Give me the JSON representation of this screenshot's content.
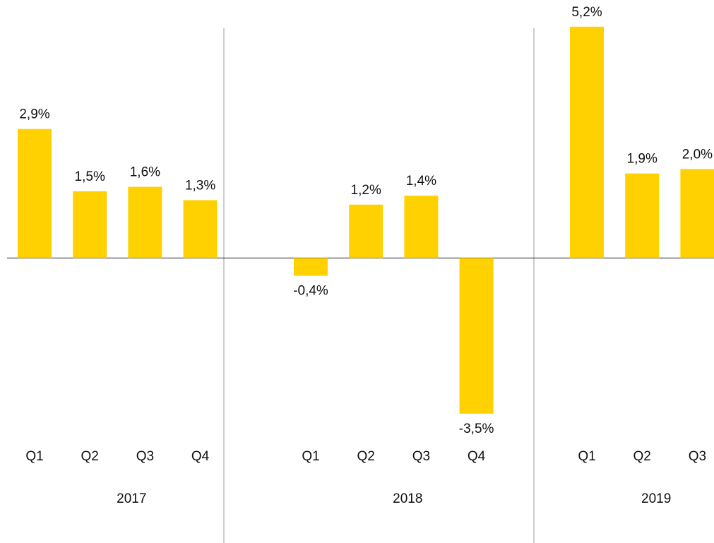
{
  "chart_data": {
    "type": "bar",
    "categories": [
      "Q1",
      "Q2",
      "Q3",
      "Q4",
      null,
      "Q1",
      "Q2",
      "Q3",
      "Q4",
      null,
      "Q1",
      "Q2",
      "Q3"
    ],
    "values": [
      2.9,
      1.5,
      1.6,
      1.3,
      null,
      -0.4,
      1.2,
      1.4,
      -3.5,
      null,
      5.2,
      1.9,
      2.0
    ],
    "value_labels": [
      "2,9%",
      "1,5%",
      "1,6%",
      "1,3%",
      null,
      "-0,4%",
      "1,2%",
      "1,4%",
      "-3,5%",
      null,
      "5,2%",
      "1,9%",
      "2,0%"
    ],
    "groups": [
      "2017",
      "2018",
      "2019"
    ],
    "color": "#ffd100",
    "ylim": [
      -3.9,
      5.8
    ]
  }
}
